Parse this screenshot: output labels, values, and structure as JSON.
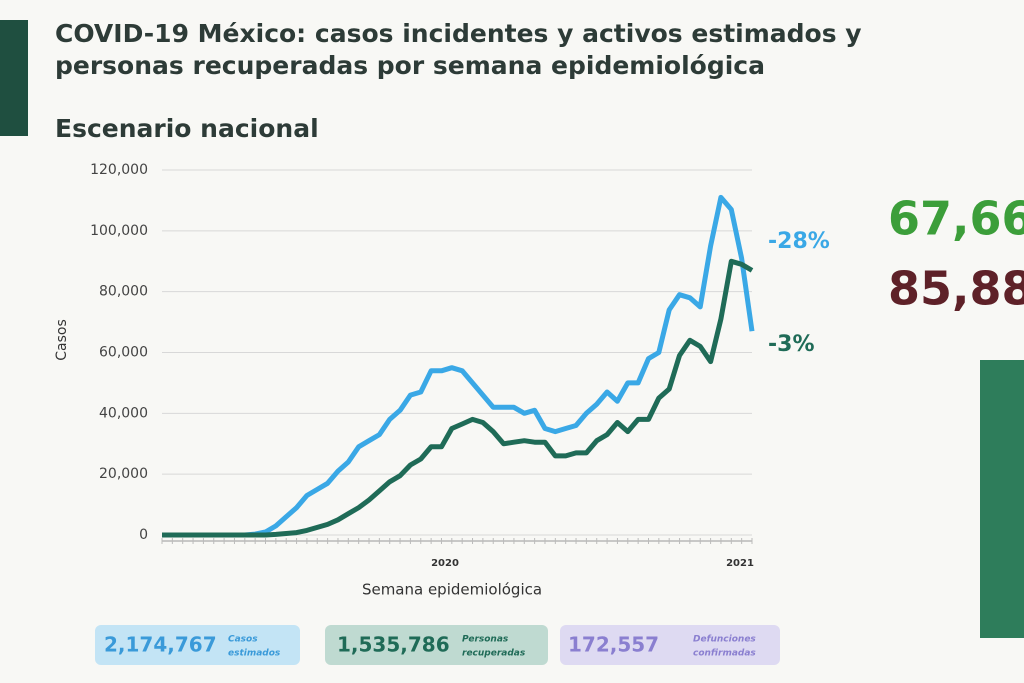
{
  "header": {
    "title_lines": [
      "COVID-19 México: casos incidentes y activos estimados y",
      "personas recuperadas por semana epidemiológica"
    ],
    "subtitle": "Escenario nacional"
  },
  "chart_data": {
    "type": "line",
    "y_label": "Casos",
    "x_label": "Semana epidemiológica",
    "x_groups": [
      "2020",
      "2021"
    ],
    "categories": [
      null,
      null,
      null,
      null,
      null,
      null,
      null,
      null,
      null,
      null,
      null,
      null,
      null,
      null,
      null,
      null,
      null,
      null,
      null,
      null,
      null,
      null,
      null,
      null,
      null,
      null,
      null,
      null,
      null,
      null,
      null,
      null,
      null,
      null,
      null,
      null,
      null,
      null,
      null,
      null,
      null,
      null,
      null,
      null,
      null,
      null,
      null,
      null,
      null,
      null,
      null,
      null,
      null,
      null,
      null,
      null,
      null,
      null
    ],
    "series": [
      {
        "color": "#3aa8e6",
        "values": [
          0,
          0,
          0,
          0,
          0,
          0,
          0,
          0,
          0,
          300,
          1000,
          3000,
          6000,
          9000,
          13000,
          15000,
          17000,
          21000,
          24000,
          29000,
          31000,
          33000,
          38000,
          41000,
          46000,
          47000,
          54000,
          54000,
          55000,
          54000,
          50000,
          46000,
          42000,
          42000,
          42000,
          40000,
          41000,
          35000,
          34000,
          35000,
          36000,
          40000,
          43000,
          47000,
          44000,
          50000,
          50000,
          58000,
          60000,
          74000,
          79000,
          78000,
          75000,
          95000,
          111000,
          107000,
          91000,
          67000
        ],
        "end_label": "-28%"
      },
      {
        "color": "#1f6b57",
        "values": [
          0,
          0,
          0,
          0,
          0,
          0,
          0,
          0,
          0,
          0,
          0,
          200,
          500,
          800,
          1500,
          2500,
          3500,
          5000,
          7000,
          9000,
          11500,
          14500,
          17500,
          19500,
          23000,
          25000,
          29000,
          29000,
          35000,
          36500,
          38000,
          37000,
          34000,
          30000,
          30500,
          31000,
          30500,
          30500,
          26000,
          26000,
          27000,
          27000,
          31000,
          33000,
          37000,
          34000,
          38000,
          38000,
          45000,
          48000,
          59000,
          64000,
          62000,
          57000,
          71000,
          90000,
          89000,
          87000
        ],
        "end_label": "-3%"
      }
    ],
    "ylim": [
      0,
      120000
    ],
    "yticks": [
      0,
      {
        "value": 20000,
        "label": "20,000"
      },
      {
        "value": 40000,
        "label": "40,000"
      },
      {
        "value": 60000,
        "label": "60,000"
      },
      {
        "value": 80000,
        "label": "80,000"
      },
      {
        "value": 100000,
        "label": "100,000"
      },
      {
        "value": 120000,
        "label": "120,000"
      }
    ],
    "grid": true
  },
  "side_numbers": [
    "67,66",
    "85,88"
  ],
  "stats": [
    {
      "number": "2,174,767",
      "label": [
        "Casos",
        "estimados"
      ]
    },
    {
      "number": "1,535,786",
      "label": [
        "Personas",
        "recuperadas"
      ]
    },
    {
      "number": "172,557",
      "label": [
        "Defunciones",
        "confirmadas"
      ]
    }
  ]
}
